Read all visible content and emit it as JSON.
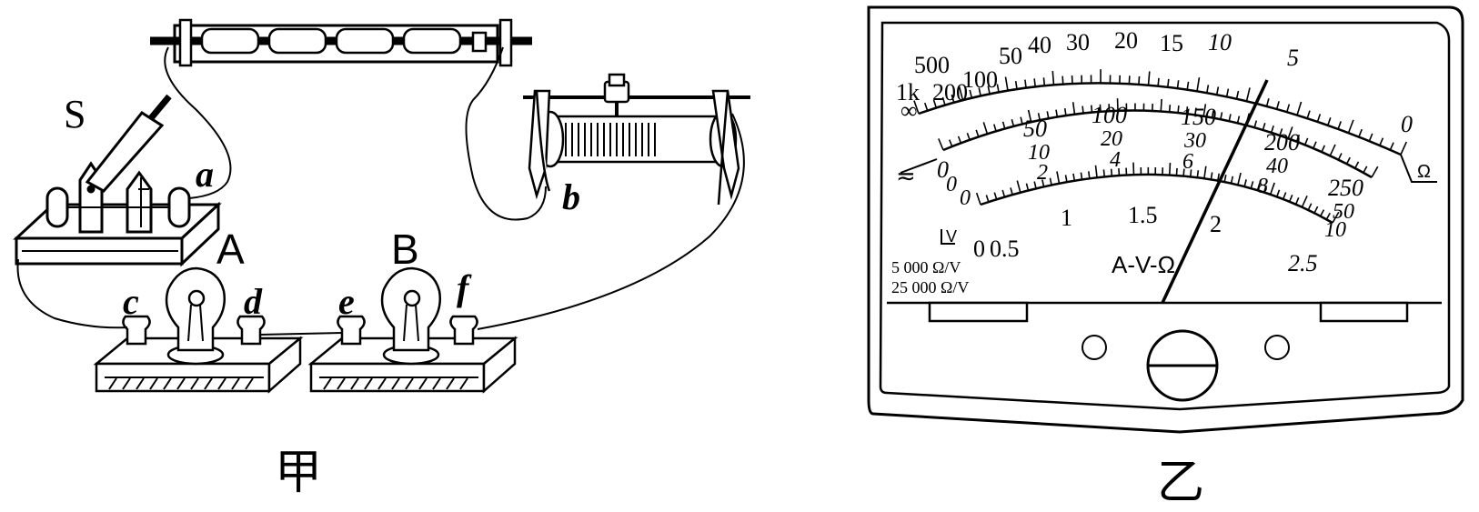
{
  "figure_left": {
    "caption": "甲",
    "switch_label": "S",
    "bulb_a_label": "A",
    "bulb_b_label": "B",
    "terminals": [
      "a",
      "b",
      "c",
      "d",
      "e",
      "f"
    ]
  },
  "figure_right": {
    "caption": "乙",
    "ohm_scale": [
      "∞",
      "1k",
      "500",
      "200",
      "100",
      "50",
      "40",
      "30",
      "20",
      "15",
      "10",
      "5",
      "0"
    ],
    "ohm_symbol": "Ω",
    "scale_250": [
      "0",
      "50",
      "100",
      "150",
      "200",
      "250"
    ],
    "scale_50": [
      "0",
      "10",
      "20",
      "30",
      "40",
      "50"
    ],
    "scale_10": [
      "0",
      "2",
      "4",
      "6",
      "8",
      "10"
    ],
    "scale_2_5": [
      "0",
      "0.5",
      "1",
      "1.5",
      "2",
      "2.5"
    ],
    "dc_symbol": "≂",
    "ac_symbol": "V",
    "center_text": "A-V-Ω",
    "sensitivity_1": "5 000 Ω/V",
    "sensitivity_2": "25 000 Ω/V"
  }
}
